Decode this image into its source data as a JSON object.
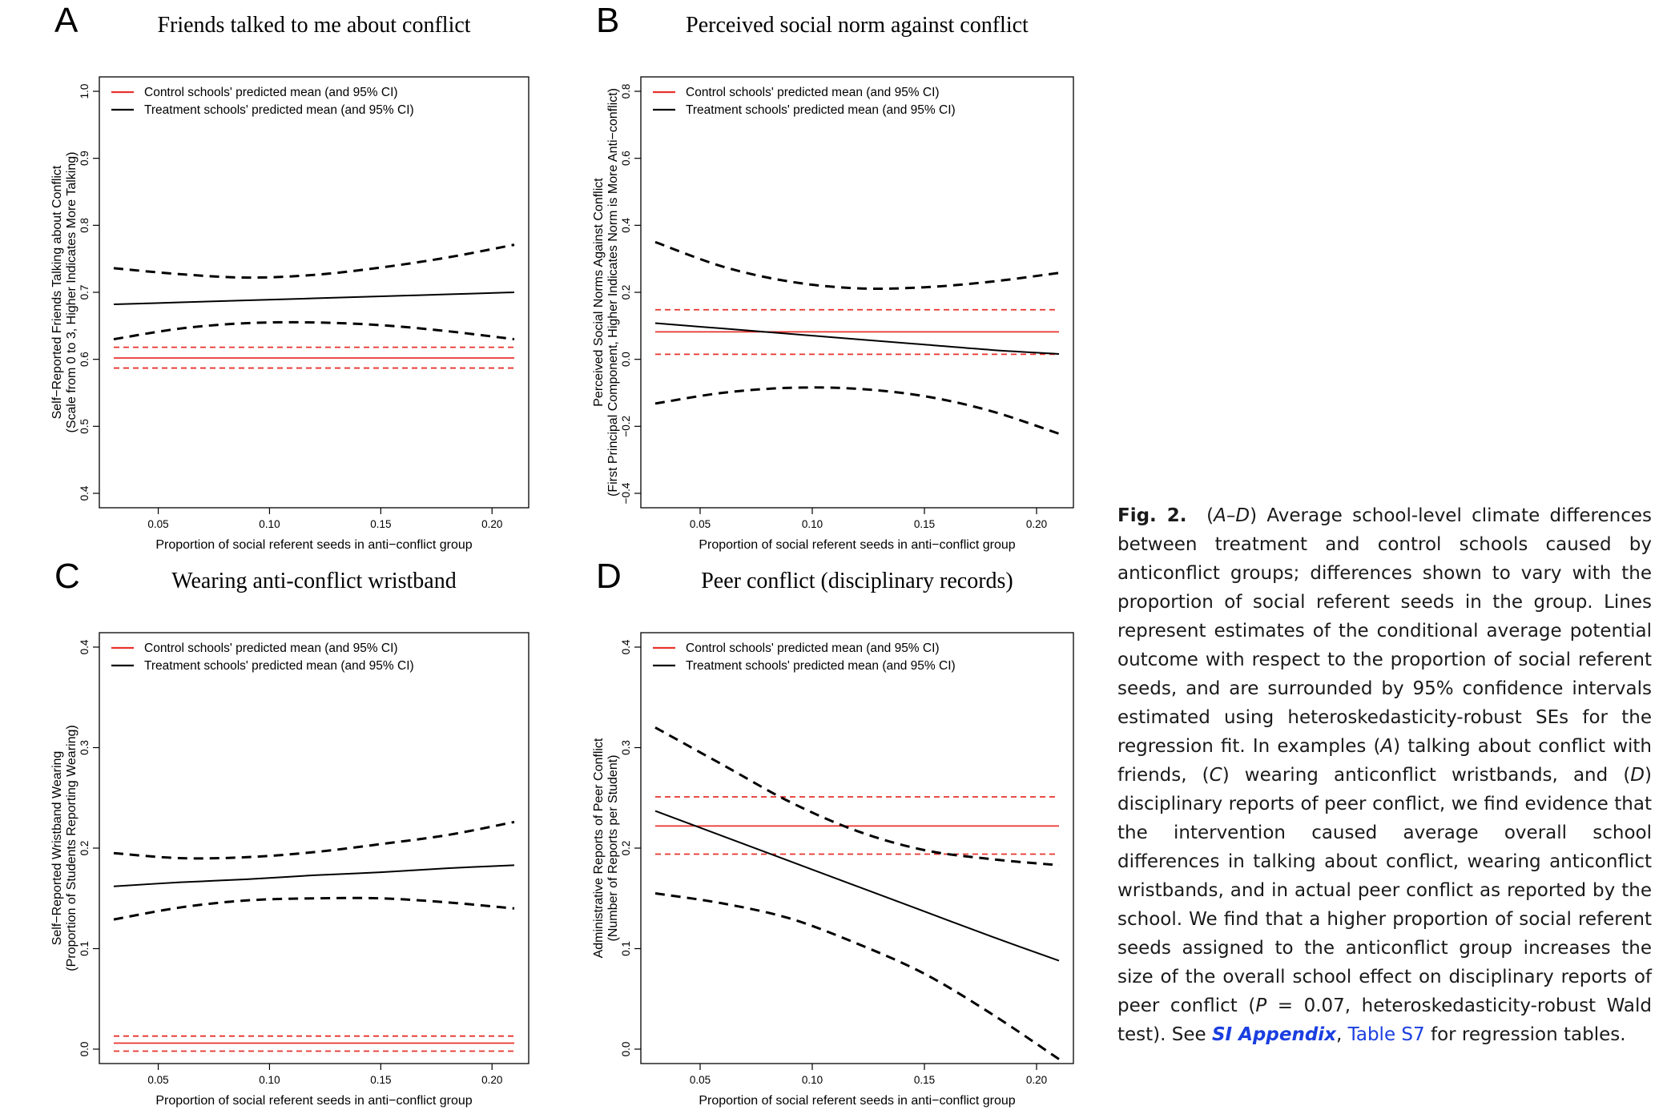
{
  "chart_data": [
    {
      "panel": "A",
      "type": "line",
      "title": "Friends talked to me about conflict",
      "xlabel": "Proportion of social referent seeds in anti−conflict group",
      "ylabel": [
        "Self−Reported Friends Talking about Conflict",
        "(Scale from 0 to 3, Higher Indicates More Talking)"
      ],
      "xlim": [
        0.03,
        0.21
      ],
      "ylim": [
        0.4,
        1.0
      ],
      "xticks": [
        "0.05",
        "0.10",
        "0.15",
        "0.20"
      ],
      "yticks": [
        "0.4",
        "0.5",
        "0.6",
        "0.7",
        "0.8",
        "0.9",
        "1.0"
      ],
      "legend": [
        "Control schools' predicted mean (and 95% CI)",
        "Treatment schools' predicted mean (and 95% CI)"
      ],
      "legend_position": "top-left",
      "series": [
        {
          "name": "Control schools' predicted mean (and 95% CI)",
          "color": "#e8322d",
          "x": [
            0.03,
            0.21
          ],
          "mean": [
            0.602,
            0.602
          ],
          "lower": [
            0.587,
            0.587
          ],
          "upper": [
            0.618,
            0.618
          ]
        },
        {
          "name": "Treatment schools' predicted mean (and 95% CI)",
          "color": "#000000",
          "x": [
            0.03,
            0.06,
            0.09,
            0.12,
            0.15,
            0.18,
            0.21
          ],
          "mean": [
            0.682,
            0.685,
            0.688,
            0.691,
            0.694,
            0.697,
            0.7
          ],
          "lower": [
            0.63,
            0.646,
            0.654,
            0.655,
            0.651,
            0.642,
            0.63
          ],
          "upper": [
            0.736,
            0.727,
            0.722,
            0.726,
            0.737,
            0.752,
            0.771
          ]
        }
      ]
    },
    {
      "panel": "B",
      "type": "line",
      "title": "Perceived social norm against conflict",
      "xlabel": "Proportion of social referent seeds in anti−conflict group",
      "ylabel": [
        "Perceived Social Norms Against Conflict",
        "(First Principal Component, Higher Indicates Norm is More Anti−conflict)"
      ],
      "xlim": [
        0.03,
        0.21
      ],
      "ylim": [
        -0.4,
        0.8
      ],
      "xticks": [
        "0.05",
        "0.10",
        "0.15",
        "0.20"
      ],
      "yticks": [
        "−0.4",
        "−0.2",
        "0.0",
        "0.2",
        "0.4",
        "0.6",
        "0.8"
      ],
      "legend": [
        "Control schools' predicted mean (and 95% CI)",
        "Treatment schools' predicted mean (and 95% CI)"
      ],
      "legend_position": "top-left",
      "series": [
        {
          "name": "Control schools' predicted mean (and 95% CI)",
          "color": "#e8322d",
          "x": [
            0.03,
            0.21
          ],
          "mean": [
            0.082,
            0.082
          ],
          "lower": [
            0.015,
            0.015
          ],
          "upper": [
            0.148,
            0.148
          ]
        },
        {
          "name": "Treatment schools' predicted mean (and 95% CI)",
          "color": "#000000",
          "x": [
            0.03,
            0.06,
            0.09,
            0.12,
            0.15,
            0.18,
            0.21
          ],
          "mean": [
            0.108,
            0.092,
            0.076,
            0.06,
            0.044,
            0.028,
            0.016
          ],
          "lower": [
            -0.132,
            -0.1,
            -0.085,
            -0.088,
            -0.11,
            -0.155,
            -0.222
          ],
          "upper": [
            0.35,
            0.277,
            0.232,
            0.212,
            0.215,
            0.232,
            0.258
          ]
        }
      ]
    },
    {
      "panel": "C",
      "type": "line",
      "title": "Wearing anti-conflict wristband",
      "xlabel": "Proportion of social referent seeds in anti−conflict group",
      "ylabel": [
        "Self−Reported Wristband Wearing",
        "(Proportion of Students Reporting Wearing)"
      ],
      "xlim": [
        0.03,
        0.21
      ],
      "ylim": [
        0.0,
        0.4
      ],
      "xticks": [
        "0.05",
        "0.10",
        "0.15",
        "0.20"
      ],
      "yticks": [
        "0.0",
        "0.1",
        "0.2",
        "0.3",
        "0.4"
      ],
      "legend": [
        "Control schools' predicted mean (and 95% CI)",
        "Treatment schools' predicted mean (and 95% CI)"
      ],
      "legend_position": "top-left",
      "series": [
        {
          "name": "Control schools' predicted mean (and 95% CI)",
          "color": "#e8322d",
          "x": [
            0.03,
            0.21
          ],
          "mean": [
            0.006,
            0.006
          ],
          "lower": [
            -0.002,
            -0.002
          ],
          "upper": [
            0.013,
            0.013
          ]
        },
        {
          "name": "Treatment schools' predicted mean (and 95% CI)",
          "color": "#000000",
          "x": [
            0.03,
            0.06,
            0.09,
            0.12,
            0.15,
            0.18,
            0.21
          ],
          "mean": [
            0.162,
            0.166,
            0.169,
            0.173,
            0.176,
            0.18,
            0.183
          ],
          "lower": [
            0.129,
            0.141,
            0.148,
            0.15,
            0.15,
            0.146,
            0.14
          ],
          "upper": [
            0.195,
            0.19,
            0.191,
            0.196,
            0.204,
            0.213,
            0.226
          ]
        }
      ]
    },
    {
      "panel": "D",
      "type": "line",
      "title": "Peer conflict (disciplinary records)",
      "xlabel": "Proportion of social referent seeds in anti−conflict group",
      "ylabel": [
        "Administrative Reports of Peer Conflict",
        "(Number of Reports per Student)"
      ],
      "xlim": [
        0.03,
        0.21
      ],
      "ylim": [
        0.0,
        0.4
      ],
      "xticks": [
        "0.05",
        "0.10",
        "0.15",
        "0.20"
      ],
      "yticks": [
        "0.0",
        "0.1",
        "0.2",
        "0.3",
        "0.4"
      ],
      "legend": [
        "Control schools' predicted mean (and 95% CI)",
        "Treatment schools' predicted mean (and 95% CI)"
      ],
      "legend_position": "top-left",
      "series": [
        {
          "name": "Control schools' predicted mean (and 95% CI)",
          "color": "#e8322d",
          "x": [
            0.03,
            0.21
          ],
          "mean": [
            0.222,
            0.222
          ],
          "lower": [
            0.194,
            0.194
          ],
          "upper": [
            0.251,
            0.251
          ]
        },
        {
          "name": "Treatment schools' predicted mean (and 95% CI)",
          "color": "#000000",
          "x": [
            0.03,
            0.06,
            0.09,
            0.12,
            0.15,
            0.18,
            0.21
          ],
          "mean": [
            0.237,
            0.212,
            0.187,
            0.162,
            0.137,
            0.112,
            0.088
          ],
          "lower": [
            0.155,
            0.145,
            0.13,
            0.105,
            0.075,
            0.035,
            -0.01
          ],
          "upper": [
            0.32,
            0.283,
            0.246,
            0.217,
            0.198,
            0.189,
            0.183
          ]
        }
      ]
    }
  ],
  "caption": {
    "fig_label": "Fig. 2.",
    "range": "A–D",
    "text_1": " Average school-level climate differences between treatment and control schools caused by anticonflict groups; differences shown to vary with the proportion of social referent seeds in the group. Lines represent estimates of the conditional average potential outcome with respect to the proportion of social referent seeds, and are surrounded by 95% confidence intervals estimated using heteroskedasticity-robust SEs for the regression fit. In examples (",
    "ref_a": "A",
    "text_2": ") talking about conflict with friends, (",
    "ref_c": "C",
    "text_3": ") wearing anticonflict wristbands, and (",
    "ref_d": "D",
    "text_4": ") disciplinary reports of peer conflict, we find evidence that the intervention caused average overall school differences in talking about conflict, wearing anticonflict wristbands, and in actual peer conflict as reported by the school. We find that a higher proportion of social referent seeds assigned to the anticonflict group increases the size of the overall school effect on disciplinary reports of peer conflict (",
    "p_symbol": "P",
    "text_5": " = 0.07, heteroskedasticity-robust Wald test). See ",
    "link_si": "SI Appendix",
    "text_6": ", ",
    "link_table": "Table S7",
    "text_7": " for regression tables."
  }
}
